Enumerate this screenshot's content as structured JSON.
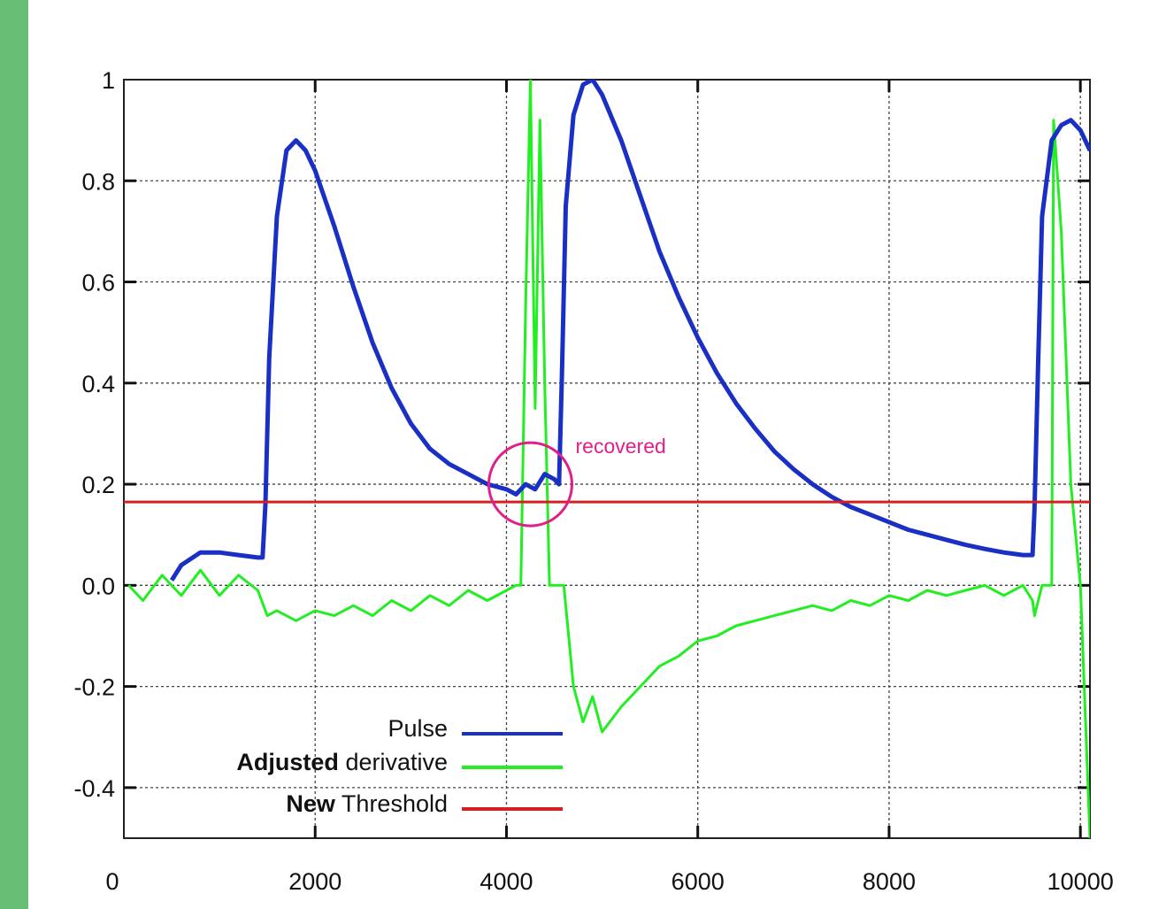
{
  "colors": {
    "side_bar": "#66bf72",
    "pulse": "#1a2fc4",
    "derivative": "#22ee22",
    "threshold": "#d42020",
    "annotation": "#e0208a",
    "grid": "#444444"
  },
  "chart_data": {
    "type": "line",
    "title": "",
    "xlabel": "",
    "ylabel": "",
    "xlim": [
      0,
      10100
    ],
    "ylim": [
      -0.5,
      1.0
    ],
    "grid": true,
    "x_ticks": [
      0,
      2000,
      4000,
      6000,
      8000,
      10000
    ],
    "y_ticks": [
      -0.4,
      -0.2,
      0.0,
      0.2,
      0.4,
      0.6,
      0.8,
      1.0
    ],
    "x_tick_labels": [
      "0",
      "2000",
      "4000",
      "6000",
      "8000",
      "10000"
    ],
    "y_tick_labels": [
      "-0.4",
      "-0.2",
      "0.0",
      "0.2",
      "0.4",
      "0.6",
      "0.8",
      "1"
    ],
    "legend_position": "bottom-left",
    "series": [
      {
        "name": "Pulse",
        "name_bold": "",
        "name_rest": "Pulse",
        "color_key": "pulse",
        "x": [
          500,
          600,
          800,
          1000,
          1200,
          1400,
          1450,
          1480,
          1520,
          1600,
          1700,
          1800,
          1900,
          2000,
          2200,
          2400,
          2600,
          2800,
          3000,
          3200,
          3400,
          3600,
          3800,
          4000,
          4100,
          4200,
          4300,
          4400,
          4500,
          4550,
          4580,
          4620,
          4700,
          4800,
          4900,
          5000,
          5200,
          5400,
          5600,
          5800,
          6000,
          6200,
          6400,
          6600,
          6800,
          7000,
          7200,
          7400,
          7600,
          7800,
          8000,
          8200,
          8400,
          8600,
          8800,
          9000,
          9200,
          9400,
          9500,
          9520,
          9560,
          9600,
          9700,
          9800,
          9900,
          10000,
          10100
        ],
        "y": [
          0.01,
          0.04,
          0.065,
          0.065,
          0.06,
          0.055,
          0.055,
          0.16,
          0.45,
          0.73,
          0.86,
          0.88,
          0.86,
          0.82,
          0.71,
          0.59,
          0.48,
          0.39,
          0.32,
          0.27,
          0.24,
          0.22,
          0.2,
          0.19,
          0.18,
          0.2,
          0.19,
          0.22,
          0.21,
          0.2,
          0.42,
          0.75,
          0.93,
          0.99,
          1.0,
          0.97,
          0.88,
          0.77,
          0.66,
          0.57,
          0.49,
          0.42,
          0.36,
          0.31,
          0.265,
          0.23,
          0.2,
          0.175,
          0.155,
          0.14,
          0.125,
          0.11,
          0.1,
          0.09,
          0.08,
          0.072,
          0.065,
          0.06,
          0.06,
          0.15,
          0.45,
          0.73,
          0.88,
          0.91,
          0.92,
          0.9,
          0.86
        ]
      },
      {
        "name": "Adjusted derivative",
        "name_bold": "Adjusted",
        "name_rest": " derivative",
        "color_key": "derivative",
        "x": [
          50,
          200,
          400,
          600,
          800,
          1000,
          1200,
          1400,
          1500,
          1600,
          1800,
          2000,
          2200,
          2400,
          2600,
          2800,
          3000,
          3200,
          3400,
          3600,
          3800,
          4000,
          4100,
          4150,
          4200,
          4250,
          4300,
          4350,
          4400,
          4450,
          4500,
          4600,
          4700,
          4800,
          4900,
          5000,
          5200,
          5400,
          5600,
          5800,
          6000,
          6200,
          6400,
          6600,
          6800,
          7000,
          7200,
          7400,
          7600,
          7800,
          8000,
          8200,
          8400,
          8600,
          8800,
          9000,
          9200,
          9400,
          9500,
          9520,
          9600,
          9700,
          9720,
          9800,
          9900,
          10000,
          10100
        ],
        "y": [
          0.0,
          -0.03,
          0.02,
          -0.02,
          0.03,
          -0.02,
          0.02,
          -0.01,
          -0.06,
          -0.05,
          -0.07,
          -0.05,
          -0.06,
          -0.04,
          -0.06,
          -0.03,
          -0.05,
          -0.02,
          -0.04,
          -0.01,
          -0.03,
          -0.01,
          0.0,
          0.0,
          0.55,
          1.0,
          0.35,
          0.92,
          0.4,
          0.0,
          0.0,
          0.0,
          -0.2,
          -0.27,
          -0.22,
          -0.29,
          -0.24,
          -0.2,
          -0.16,
          -0.14,
          -0.11,
          -0.1,
          -0.08,
          -0.07,
          -0.06,
          -0.05,
          -0.04,
          -0.05,
          -0.03,
          -0.04,
          -0.02,
          -0.03,
          -0.01,
          -0.02,
          -0.01,
          0.0,
          -0.02,
          0.0,
          -0.03,
          -0.06,
          0.0,
          0.0,
          0.92,
          0.7,
          0.2,
          0.0,
          -0.5
        ]
      },
      {
        "name": "New Threshold",
        "name_bold": "New",
        "name_rest": " Threshold",
        "color_key": "threshold",
        "x": [
          0,
          10100
        ],
        "y": [
          0.165,
          0.165
        ]
      }
    ],
    "annotations": [
      {
        "text": "recovered",
        "x": 4250,
        "y": 0.2
      }
    ]
  }
}
